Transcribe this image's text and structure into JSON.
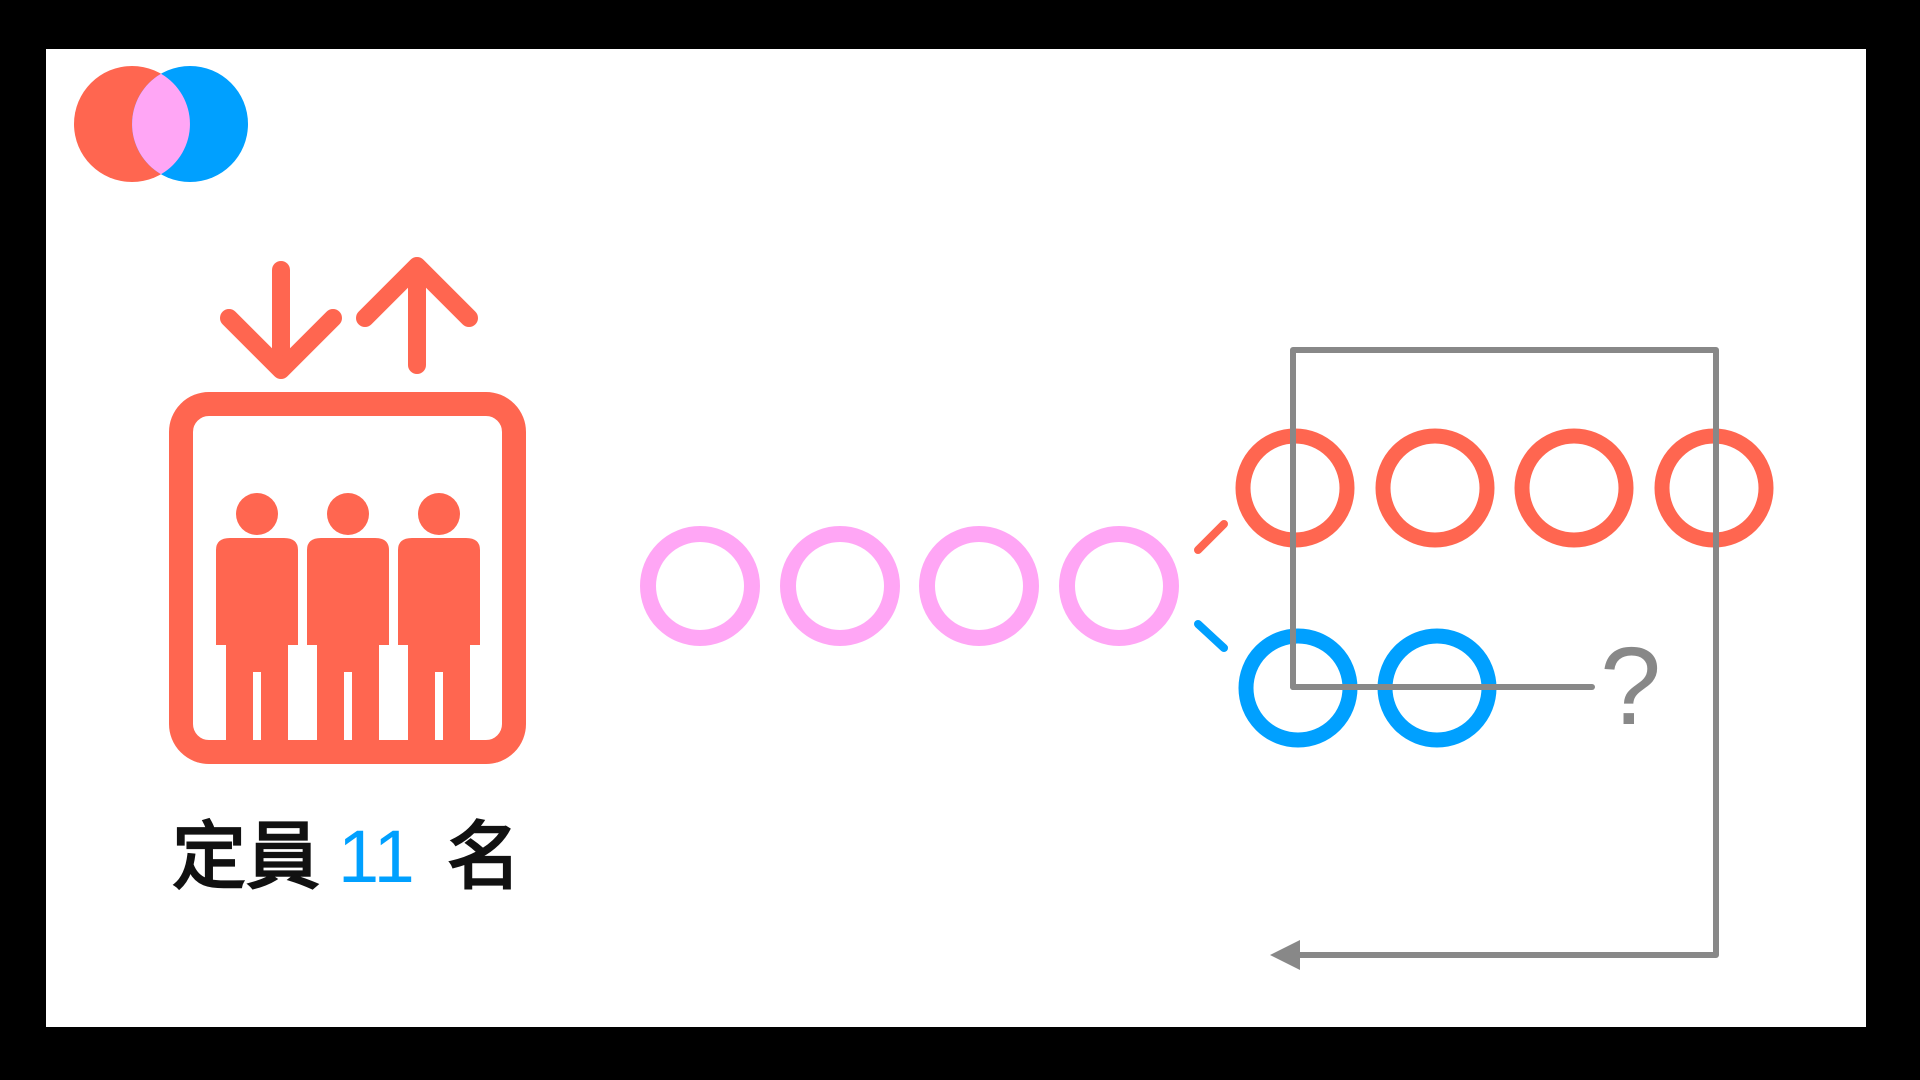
{
  "colors": {
    "red": "#ff6650",
    "blue": "#00a0ff",
    "pink": "#ffa6f5",
    "gray": "#888888",
    "text": "#111111"
  },
  "logo": {
    "name": "venn-logo-icon"
  },
  "elevator": {
    "icon": "elevator-icon",
    "arrows": [
      "down-arrow-icon",
      "up-arrow-icon"
    ],
    "people_count": 3
  },
  "caption": {
    "prefix": "定員",
    "number": "11",
    "suffix": "名"
  },
  "pink_circles": 4,
  "red_circles": 4,
  "blue_circles": 2,
  "question": "?"
}
